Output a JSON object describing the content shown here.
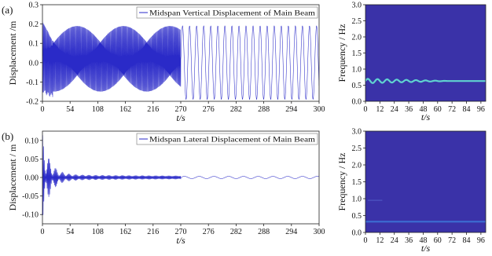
{
  "chart_data": [
    {
      "panel": "(a)",
      "type": "line",
      "legend": "Midspan Vertical Displacement of Main Beam",
      "legend_position": "top-right",
      "xlabel": "t/s",
      "ylabel": "Displacement /m",
      "x_ticks": [
        "0",
        "54",
        "108",
        "162",
        "216",
        "270",
        "276",
        "282",
        "288",
        "294",
        "300"
      ],
      "y_ticks": [
        -0.2,
        -0.1,
        0.0,
        0.1,
        0.2,
        0.3
      ],
      "ylim": [
        -0.2,
        0.3
      ],
      "x_segments": [
        {
          "range": [
            0,
            270
          ]
        },
        {
          "range": [
            270,
            300
          ]
        }
      ],
      "line_color": "#2a2ac8",
      "series": [
        {
          "signal": "dense oscillation 0-270 s, then sinusoid 270-300 s",
          "envelope": [
            [
              0,
              0.24
            ],
            [
              10,
              0.22
            ],
            [
              30,
              0.2
            ],
            [
              100,
              0.19
            ],
            [
              270,
              0.19
            ]
          ],
          "lower_envelope": [
            [
              0,
              -0.18
            ],
            [
              20,
              -0.17
            ],
            [
              100,
              -0.15
            ],
            [
              270,
              -0.15
            ]
          ],
          "steady_amplitude": 0.19,
          "steady_period_s": 1.53
        }
      ]
    },
    {
      "panel": "(a) spectrogram",
      "type": "heatmap",
      "xlabel": "t/s",
      "ylabel": "Frequency / Hz",
      "x_ticks": [
        0,
        12,
        24,
        36,
        48,
        60,
        72,
        84,
        96
      ],
      "y_ticks": [
        0.0,
        0.5,
        1.0,
        1.5,
        2.0,
        2.5,
        3.0
      ],
      "xlim": [
        0,
        100
      ],
      "ylim": [
        0,
        3
      ],
      "background_color": "#3a32a8",
      "ridge_color": "#62dcd2",
      "ridge": {
        "frequency_hz": 0.63,
        "wobble_hz": 0.07,
        "wobble_decay_until_s": 70
      }
    },
    {
      "panel": "(b)",
      "type": "line",
      "legend": "Midspan Lateral Displacement of Main Beam",
      "legend_position": "top-right",
      "xlabel": "t/s",
      "ylabel": "Displacement / m",
      "x_ticks": [
        "0",
        "54",
        "108",
        "162",
        "216",
        "270",
        "276",
        "282",
        "288",
        "294",
        "300"
      ],
      "y_ticks": [
        -0.1,
        -0.05,
        0.0,
        0.05,
        0.1
      ],
      "ylim": [
        -0.125,
        0.125
      ],
      "x_segments": [
        {
          "range": [
            0,
            270
          ]
        },
        {
          "range": [
            270,
            300
          ]
        }
      ],
      "line_color": "#2a2ac8",
      "series": [
        {
          "signal": "decaying oscillation with beating 0-270 s, then small sinusoid 270-300 s",
          "initial_amplitude": 0.115,
          "steady_amplitude": 0.003,
          "steady_period_s": 3.2
        }
      ]
    },
    {
      "panel": "(b) spectrogram",
      "type": "heatmap",
      "xlabel": "t/s",
      "ylabel": "Frequency / Hz",
      "x_ticks": [
        0,
        12,
        24,
        36,
        48,
        60,
        72,
        84,
        96
      ],
      "y_ticks": [
        0.0,
        0.5,
        1.0,
        1.5,
        2.0,
        2.5,
        3.0
      ],
      "xlim": [
        0,
        100
      ],
      "ylim": [
        0,
        3
      ],
      "background_color": "#3a32a8",
      "ridge_color": "#3c6ed2",
      "ridge": {
        "frequency_hz": 0.32
      },
      "faint_ridge": {
        "frequency_hz": 0.95,
        "t_range": [
          2,
          14
        ]
      }
    }
  ],
  "panel_labels": [
    "(a)",
    "(b)"
  ]
}
